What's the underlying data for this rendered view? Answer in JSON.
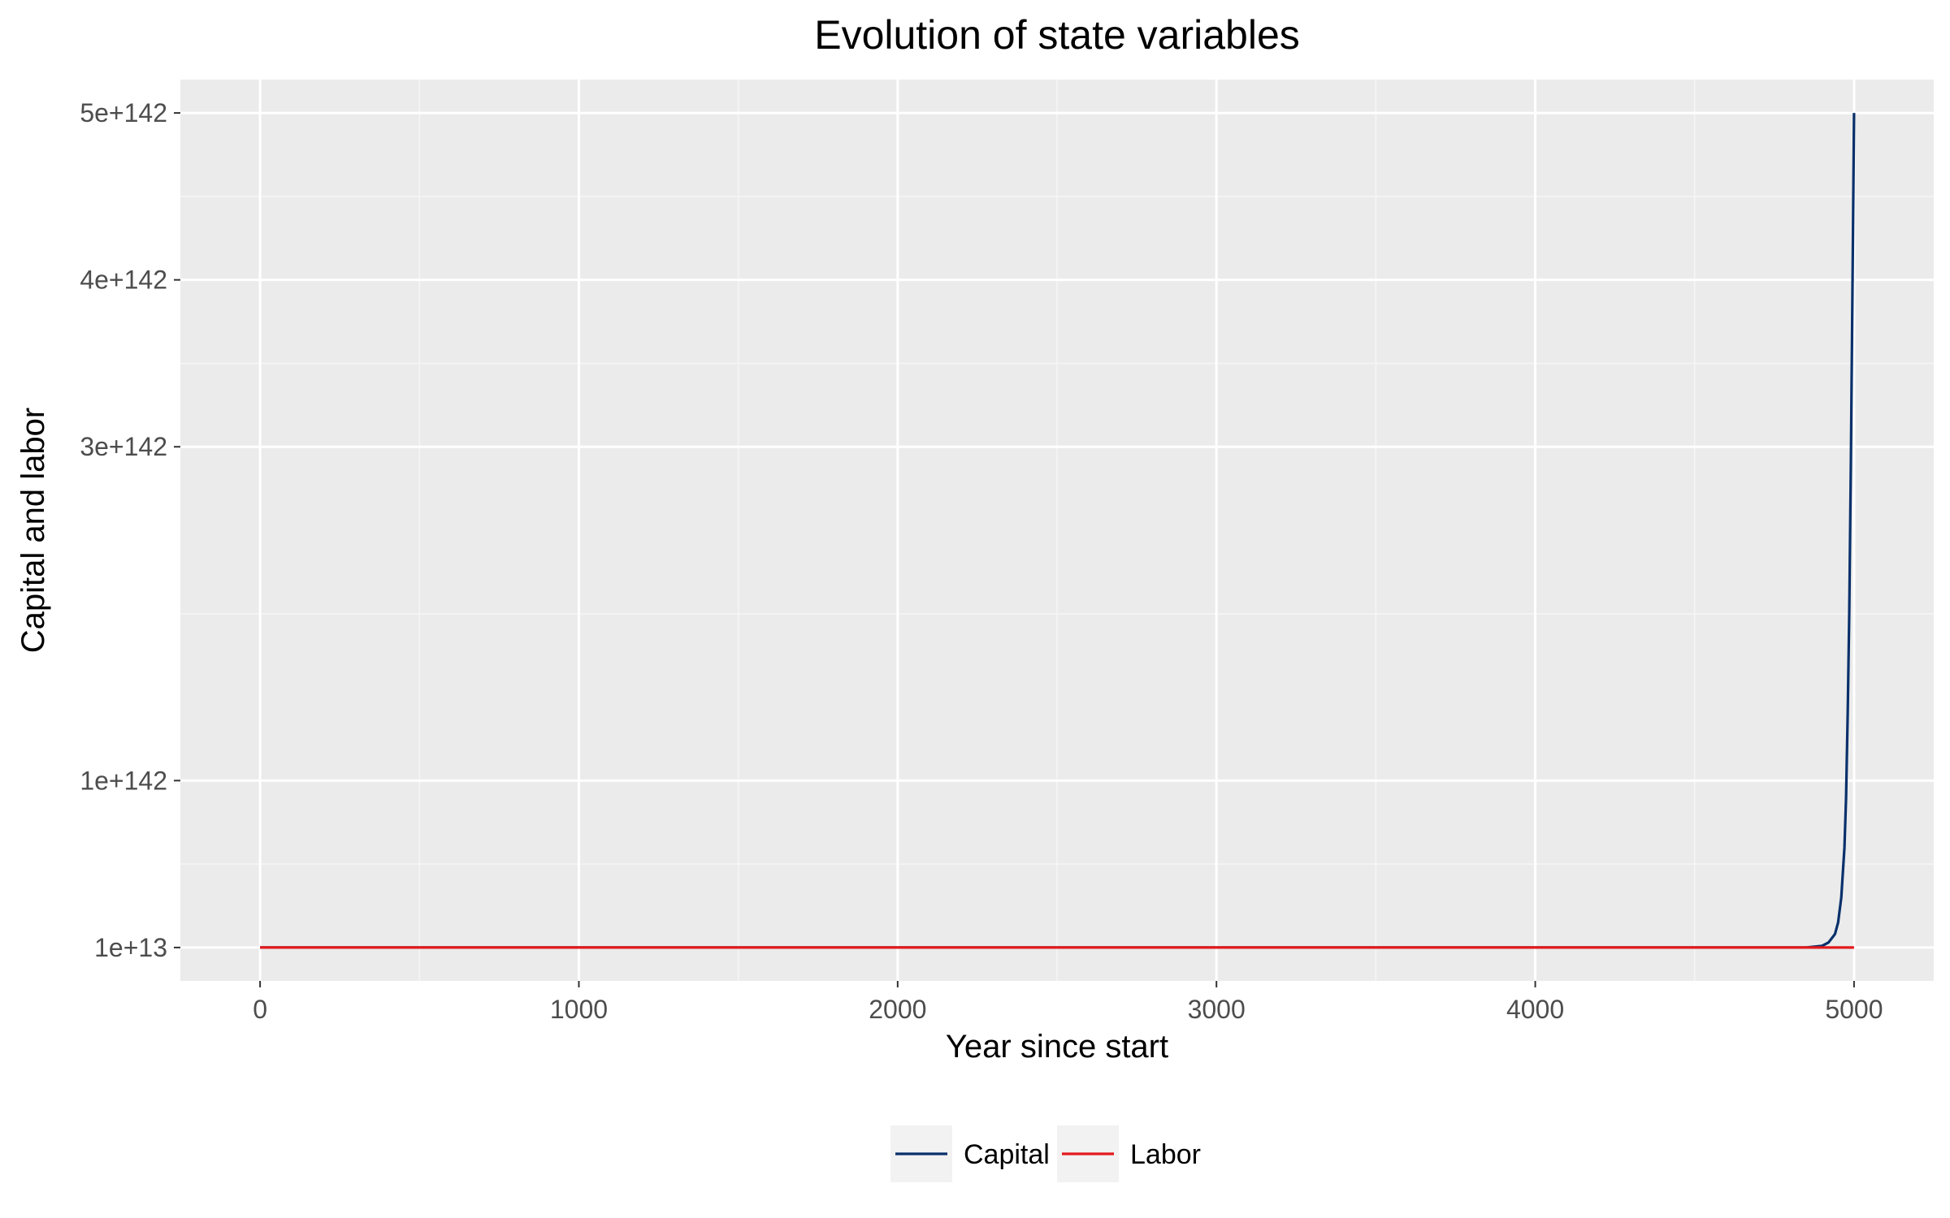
{
  "chart_data": {
    "type": "line",
    "title": "Evolution of state variables",
    "xlabel": "Year since start",
    "ylabel": "Capital and labor",
    "xlim": [
      -250,
      5250
    ],
    "x_ticks": [
      0,
      1000,
      2000,
      3000,
      4000,
      5000
    ],
    "x_tick_labels": [
      "0",
      "1000",
      "2000",
      "3000",
      "4000",
      "5000"
    ],
    "y_scale_note": "irregular tick spacing: labels at evenly spaced positions",
    "y_tick_labels": [
      "1e+13",
      "1e+142",
      "3e+142",
      "4e+142",
      "5e+142"
    ],
    "y_tick_values": [
      0,
      1,
      3,
      4,
      5
    ],
    "ylim": [
      -0.2,
      5.2
    ],
    "grid": true,
    "legend_position": "bottom",
    "series": [
      {
        "name": "Capital",
        "color": "#08306b",
        "x": [
          0,
          1000,
          2000,
          3000,
          4000,
          4850,
          4900,
          4920,
          4940,
          4950,
          4960,
          4970,
          4975,
          4980,
          4985,
          4990,
          4995,
          5000
        ],
        "y": [
          0,
          0,
          0,
          0,
          0,
          0.0,
          0.01,
          0.03,
          0.08,
          0.15,
          0.3,
          0.6,
          0.9,
          1.4,
          2.0,
          2.9,
          3.9,
          5.0
        ]
      },
      {
        "name": "Labor",
        "color": "#e31a1c",
        "x": [
          0,
          5000
        ],
        "y": [
          0,
          0
        ]
      }
    ]
  }
}
